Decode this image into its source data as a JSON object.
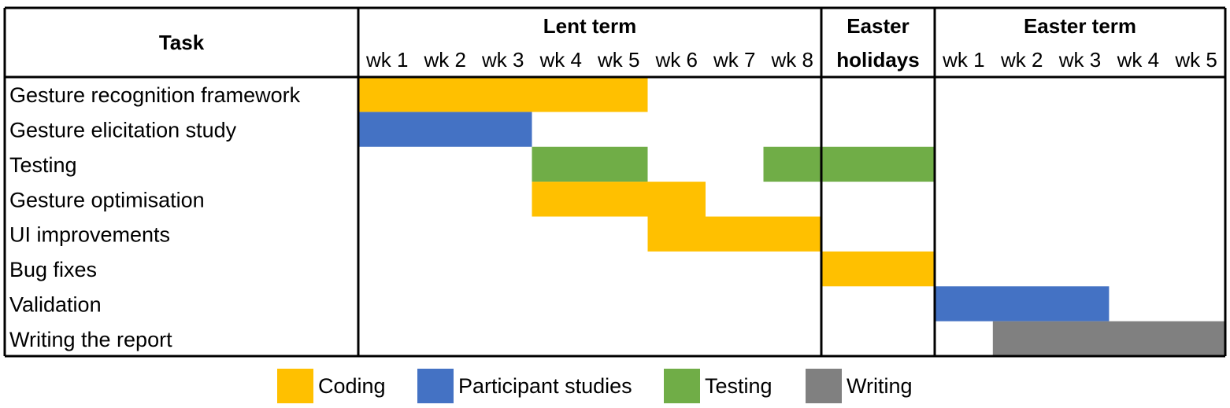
{
  "chart_data": {
    "type": "gantt",
    "task_header": "Task",
    "periods": [
      {
        "name": "Lent term",
        "name_lines": [
          "Lent term"
        ],
        "weeks": [
          "wk 1",
          "wk 2",
          "wk 3",
          "wk 4",
          "wk 5",
          "wk 6",
          "wk 7",
          "wk 8"
        ]
      },
      {
        "name": "Easter holidays",
        "name_lines": [
          "Easter",
          "holidays"
        ],
        "weeks": []
      },
      {
        "name": "Easter term",
        "name_lines": [
          "Easter term"
        ],
        "weeks": [
          "wk 1",
          "wk 2",
          "wk 3",
          "wk 4",
          "wk 5"
        ]
      }
    ],
    "tasks": [
      {
        "name": "Gesture recognition framework",
        "bars": [
          {
            "start": "Lent term wk 1",
            "end": "Lent term wk 5",
            "category": "Coding"
          }
        ]
      },
      {
        "name": "Gesture elicitation study",
        "bars": [
          {
            "start": "Lent term wk 1",
            "end": "Lent term wk 3",
            "category": "Participant studies"
          }
        ]
      },
      {
        "name": "Testing",
        "bars": [
          {
            "start": "Lent term wk 4",
            "end": "Lent term wk 5",
            "category": "Testing"
          },
          {
            "start": "Lent term wk 8",
            "end": "Easter holidays",
            "category": "Testing"
          }
        ]
      },
      {
        "name": "Gesture optimisation",
        "bars": [
          {
            "start": "Lent term wk 4",
            "end": "Lent term wk 6",
            "category": "Coding"
          }
        ]
      },
      {
        "name": "UI improvements",
        "bars": [
          {
            "start": "Lent term wk 6",
            "end": "Lent term wk 8",
            "category": "Coding"
          }
        ]
      },
      {
        "name": "Bug fixes",
        "bars": [
          {
            "start": "Easter holidays",
            "end": "Easter holidays",
            "category": "Coding"
          }
        ]
      },
      {
        "name": "Validation",
        "bars": [
          {
            "start": "Easter term wk 1",
            "end": "Easter term wk 3",
            "category": "Participant studies"
          }
        ]
      },
      {
        "name": "Writing the report",
        "bars": [
          {
            "start": "Easter term wk 2",
            "end": "Easter term wk 5",
            "category": "Writing"
          }
        ]
      }
    ],
    "legend": [
      {
        "label": "Coding",
        "color": "#FFC000"
      },
      {
        "label": "Participant studies",
        "color": "#4472C4"
      },
      {
        "label": "Testing",
        "color": "#70AD47"
      },
      {
        "label": "Writing",
        "color": "#808080"
      }
    ],
    "legend_position": "bottom"
  }
}
